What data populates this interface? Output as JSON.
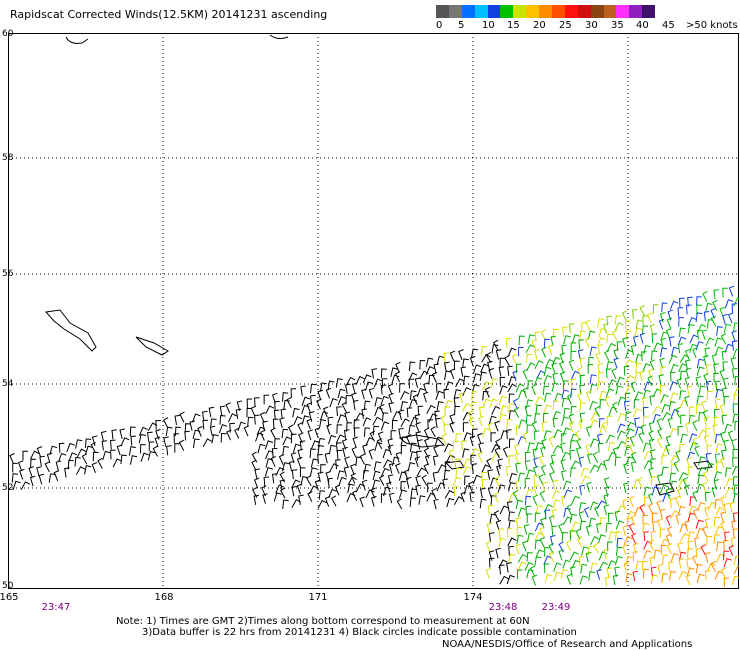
{
  "title": "Rapidscat Corrected Winds(12.5KM) 20141231 ascending",
  "legend": {
    "labels": [
      "0",
      "5",
      "10",
      "15",
      "20",
      "25",
      "30",
      "35",
      "40",
      "45",
      ">50 knots"
    ],
    "colors": [
      "#555555",
      "#777777",
      "#0070ff",
      "#00c0ff",
      "#1040e0",
      "#00c000",
      "#c8e400",
      "#ffc000",
      "#ff8c00",
      "#ff5000",
      "#ff1010",
      "#d01010",
      "#8b4513",
      "#c06020",
      "#ff30ff",
      "#9020c0",
      "#40106a"
    ]
  },
  "axes": {
    "lon_labels": [
      "165",
      "168",
      "171",
      "174"
    ],
    "lat_labels": [
      "60",
      "58",
      "56",
      "54",
      "52",
      "50"
    ]
  },
  "times": [
    "23:47",
    "23:48",
    "23:49"
  ],
  "notes": {
    "line1": "Note: 1) Times are GMT 2)Times along bottom correspond to measurement at 60N",
    "line2": "3)Data buffer is 22 hrs from 20141231 4) Black circles indicate possible contamination",
    "credit": "NOAA/NESDIS/Office of Research and Applications"
  }
}
